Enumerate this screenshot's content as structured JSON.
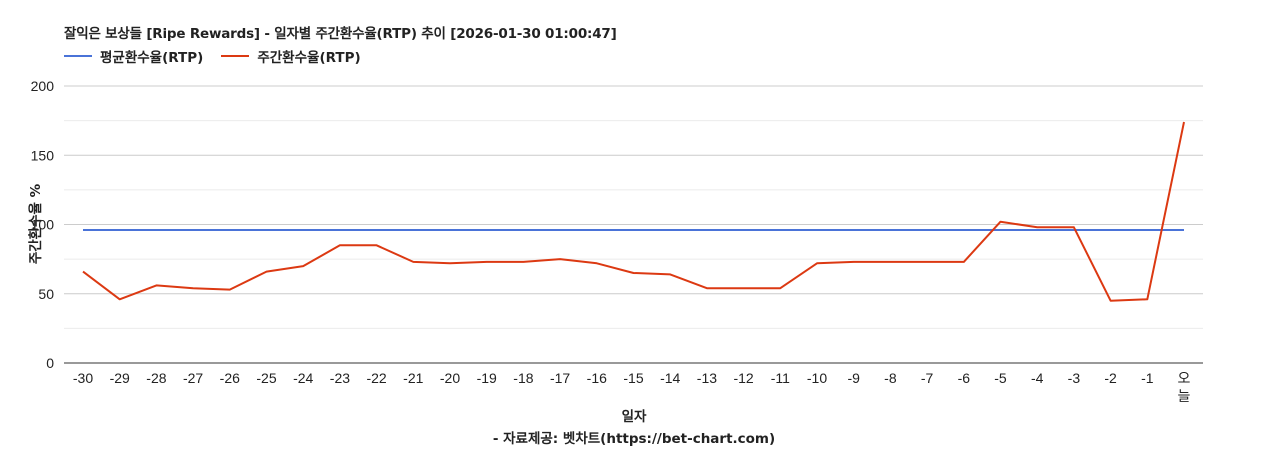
{
  "title": "잘익은 보상들 [Ripe Rewards] - 일자별 주간환수율(RTP) 추이 [2026-01-30 01:00:47]",
  "legend": [
    {
      "label": "평균환수율(RTP)",
      "color": "#4a73d8"
    },
    {
      "label": "주간환수율(RTP)",
      "color": "#dc3912"
    }
  ],
  "axis": {
    "x_title": "일자",
    "y_title": "주간환수율 %"
  },
  "credit": "- 자료제공: 벳차트(https://bet-chart.com)",
  "chart_data": {
    "type": "line",
    "title": "잘익은 보상들 [Ripe Rewards] - 일자별 주간환수율(RTP) 추이 [2026-01-30 01:00:47]",
    "xlabel": "일자",
    "ylabel": "주간환수율 %",
    "ylim": [
      0,
      200
    ],
    "yticks": [
      0,
      50,
      100,
      150,
      200
    ],
    "grid": true,
    "legend_position": "top-left",
    "categories": [
      "-30",
      "-29",
      "-28",
      "-27",
      "-26",
      "-25",
      "-24",
      "-23",
      "-22",
      "-21",
      "-20",
      "-19",
      "-18",
      "-17",
      "-16",
      "-15",
      "-14",
      "-13",
      "-12",
      "-11",
      "-10",
      "-9",
      "-8",
      "-7",
      "-6",
      "-5",
      "-4",
      "-3",
      "-2",
      "-1",
      "오늘"
    ],
    "series": [
      {
        "name": "평균환수율(RTP)",
        "color": "#4a73d8",
        "values": [
          96,
          96,
          96,
          96,
          96,
          96,
          96,
          96,
          96,
          96,
          96,
          96,
          96,
          96,
          96,
          96,
          96,
          96,
          96,
          96,
          96,
          96,
          96,
          96,
          96,
          96,
          96,
          96,
          96,
          96,
          96
        ]
      },
      {
        "name": "주간환수율(RTP)",
        "color": "#dc3912",
        "values": [
          66,
          46,
          56,
          54,
          53,
          66,
          70,
          85,
          85,
          73,
          72,
          73,
          73,
          75,
          72,
          65,
          64,
          54,
          54,
          54,
          72,
          73,
          73,
          73,
          73,
          102,
          98,
          98,
          45,
          46,
          174
        ]
      }
    ]
  }
}
